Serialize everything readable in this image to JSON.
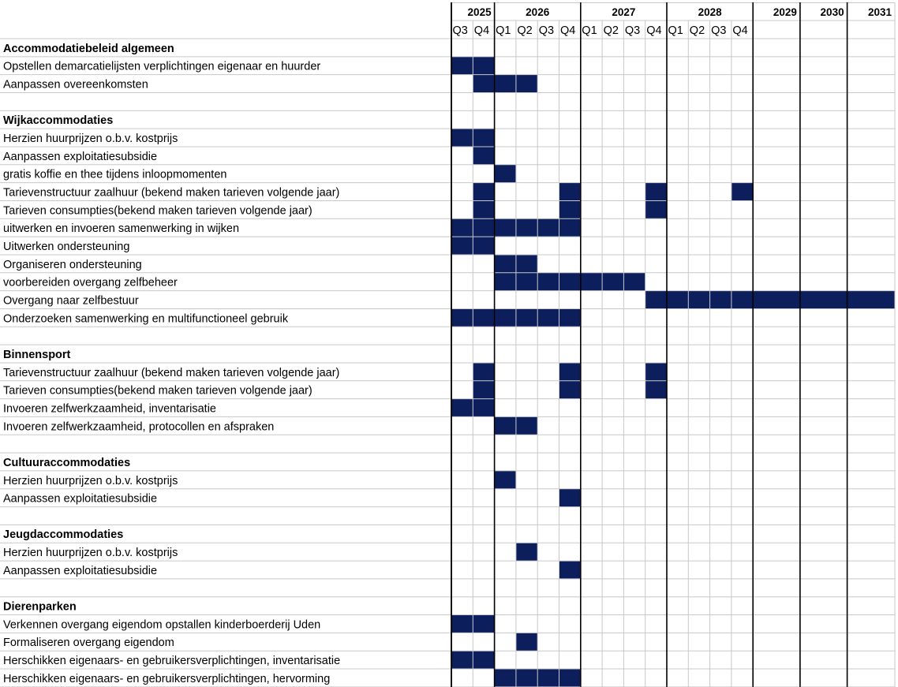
{
  "chart_data": {
    "type": "gantt",
    "colors": {
      "bar": "#0c1f5c",
      "grid": "#c8c8c8",
      "strong_line": "#000000"
    },
    "years": [
      {
        "label": "2025",
        "quarters": [
          "Q3",
          "Q4"
        ]
      },
      {
        "label": "2026",
        "quarters": [
          "Q1",
          "Q2",
          "Q3",
          "Q4"
        ]
      },
      {
        "label": "2027",
        "quarters": [
          "Q1",
          "Q2",
          "Q3",
          "Q4"
        ]
      },
      {
        "label": "2028",
        "quarters": [
          "Q1",
          "Q2",
          "Q3",
          "Q4"
        ]
      },
      {
        "label": "2029",
        "quarters": []
      },
      {
        "label": "2030",
        "quarters": []
      },
      {
        "label": "2031",
        "quarters": []
      }
    ],
    "rows": [
      {
        "label": "Accommodatiebeleid algemeen",
        "section": true
      },
      {
        "label": "Opstellen demarcatielijsten verplichtingen eigenaar en huurder",
        "bars": [
          [
            0,
            1
          ]
        ]
      },
      {
        "label": "Aanpassen overeenkomsten",
        "bars": [
          [
            1,
            3
          ]
        ]
      },
      {
        "label": ""
      },
      {
        "label": "Wijkaccommodaties",
        "section": true
      },
      {
        "label": "Herzien huurprijzen o.b.v. kostprijs",
        "bars": [
          [
            0,
            1
          ]
        ]
      },
      {
        "label": "Aanpassen exploitatiesubsidie",
        "bars": [
          [
            1,
            1
          ]
        ]
      },
      {
        "label": "gratis koffie en thee tijdens inloopmomenten",
        "bars": [
          [
            2,
            2
          ]
        ]
      },
      {
        "label": "Tarievenstructuur zaalhuur (bekend maken tarieven volgende jaar)",
        "bars": [
          [
            1,
            1
          ],
          [
            5,
            5
          ],
          [
            9,
            9
          ],
          [
            13,
            13
          ]
        ]
      },
      {
        "label": "Tarieven consumpties(bekend maken tarieven volgende jaar)",
        "bars": [
          [
            1,
            1
          ],
          [
            5,
            5
          ],
          [
            9,
            9
          ]
        ]
      },
      {
        "label": "uitwerken en  invoeren samenwerking in wijken",
        "bars": [
          [
            0,
            5
          ]
        ]
      },
      {
        "label": "Uitwerken ondersteuning",
        "bars": [
          [
            0,
            1
          ]
        ]
      },
      {
        "label": "Organiseren ondersteuning",
        "bars": [
          [
            2,
            3
          ]
        ]
      },
      {
        "label": "voorbereiden overgang zelfbeheer",
        "bars": [
          [
            2,
            8
          ]
        ]
      },
      {
        "label": "Overgang naar zelfbestuur",
        "bars": [
          [
            9,
            16
          ]
        ]
      },
      {
        "label": "Onderzoeken samenwerking en multifunctioneel gebruik",
        "bars": [
          [
            0,
            5
          ]
        ]
      },
      {
        "label": ""
      },
      {
        "label": "Binnensport",
        "section": true
      },
      {
        "label": "Tarievenstructuur zaalhuur (bekend maken tarieven volgende jaar)",
        "bars": [
          [
            1,
            1
          ],
          [
            5,
            5
          ],
          [
            9,
            9
          ]
        ]
      },
      {
        "label": "Tarieven consumpties(bekend maken tarieven volgende jaar)",
        "bars": [
          [
            1,
            1
          ],
          [
            5,
            5
          ],
          [
            9,
            9
          ]
        ]
      },
      {
        "label": "Invoeren zelfwerkzaamheid, inventarisatie",
        "bars": [
          [
            0,
            1
          ]
        ]
      },
      {
        "label": "Invoeren zelfwerkzaamheid, protocollen en afspraken",
        "bars": [
          [
            2,
            3
          ]
        ]
      },
      {
        "label": ""
      },
      {
        "label": "Cultuuraccommodaties",
        "section": true
      },
      {
        "label": "Herzien huurprijzen o.b.v. kostprijs",
        "bars": [
          [
            2,
            2
          ]
        ]
      },
      {
        "label": "Aanpassen exploitatiesubsidie",
        "bars": [
          [
            5,
            5
          ]
        ]
      },
      {
        "label": ""
      },
      {
        "label": "Jeugdaccommodaties",
        "section": true
      },
      {
        "label": "Herzien huurprijzen o.b.v. kostprijs",
        "bars": [
          [
            3,
            3
          ]
        ]
      },
      {
        "label": "Aanpassen exploitatiesubsidie",
        "bars": [
          [
            5,
            5
          ]
        ]
      },
      {
        "label": ""
      },
      {
        "label": "Dierenparken",
        "section": true
      },
      {
        "label": "Verkennen overgang eigendom opstallen kinderboerderij Uden",
        "bars": [
          [
            0,
            1
          ]
        ]
      },
      {
        "label": "Formaliseren overgang eigendom",
        "bars": [
          [
            3,
            3
          ]
        ]
      },
      {
        "label": "Herschikken eigenaars- en gebruikersverplichtingen, inventarisatie",
        "bars": [
          [
            0,
            1
          ]
        ]
      },
      {
        "label": "Herschikken eigenaars- en gebruikersverplichtingen, hervorming",
        "bars": [
          [
            2,
            5
          ]
        ]
      }
    ]
  }
}
